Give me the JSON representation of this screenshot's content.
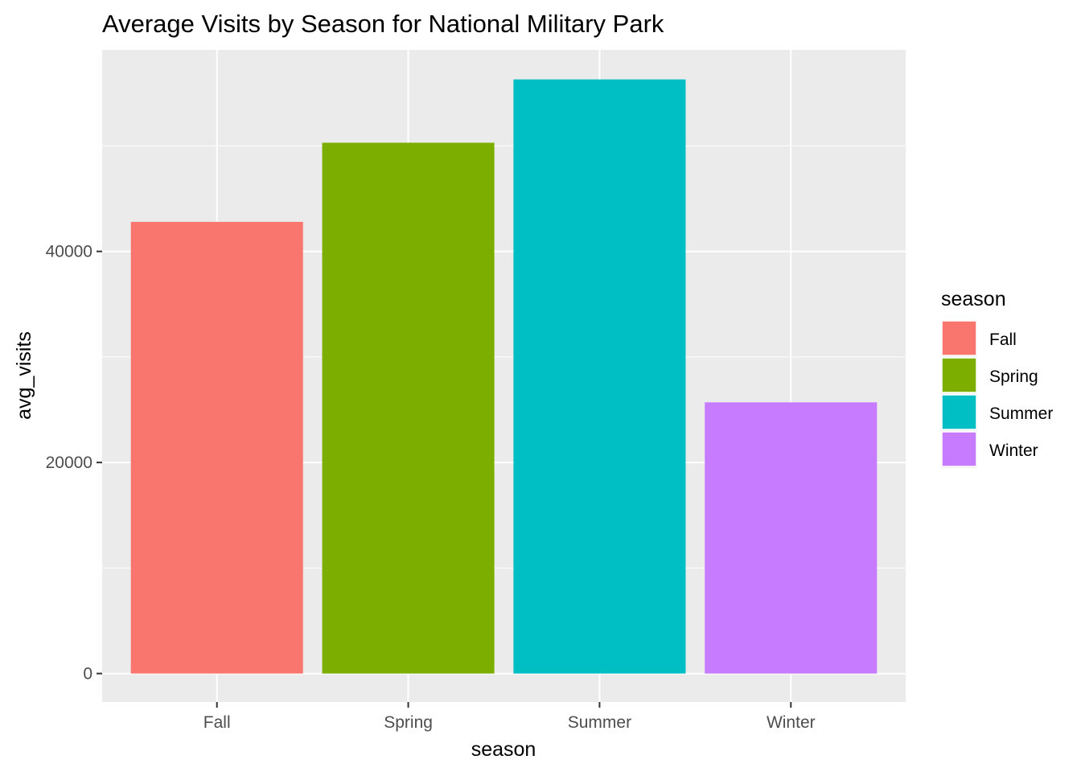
{
  "chart_data": {
    "type": "bar",
    "title": "Average Visits by Season for National Military Park",
    "xlabel": "season",
    "ylabel": "avg_visits",
    "categories": [
      "Fall",
      "Spring",
      "Summer",
      "Winter"
    ],
    "values": [
      42800,
      50300,
      56300,
      25700
    ],
    "colors": [
      "#F8766D",
      "#7CAE00",
      "#00BFC4",
      "#C77CFF"
    ],
    "ylim": [
      -2700,
      59100
    ],
    "yticks": [
      0,
      20000,
      40000
    ],
    "ytick_labels": [
      "0",
      "20000",
      "40000"
    ],
    "grid": true,
    "panel_background": "#EBEBEB",
    "legend": {
      "title": "season",
      "position": "right",
      "entries": [
        "Fall",
        "Spring",
        "Summer",
        "Winter"
      ]
    }
  }
}
